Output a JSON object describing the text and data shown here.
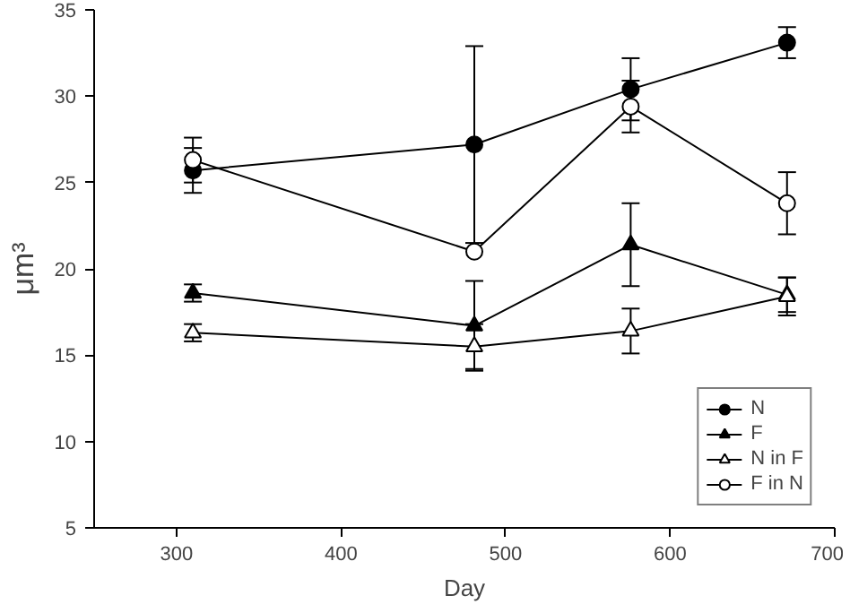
{
  "chart_data": {
    "type": "line",
    "xlabel": "Day",
    "ylabel": "μm³",
    "x": [
      310,
      481,
      576,
      671
    ],
    "series": [
      {
        "name": "N",
        "color": "#000000",
        "marker": "circle",
        "values": [
          25.7,
          27.2,
          30.4,
          33.1
        ],
        "errors": [
          1.3,
          5.7,
          1.8,
          0.9
        ]
      },
      {
        "name": "F",
        "color": "#000000",
        "marker": "triangle",
        "values": [
          18.6,
          16.7,
          21.4,
          18.5
        ],
        "errors": [
          0.5,
          2.6,
          2.4,
          1.0
        ]
      },
      {
        "name": "N in F",
        "color": "#ffffff",
        "marker": "triangle",
        "values": [
          16.3,
          15.5,
          16.4,
          18.4
        ],
        "errors": [
          0.5,
          1.3,
          1.3,
          1.1
        ]
      },
      {
        "name": "F in N",
        "color": "#ffffff",
        "marker": "circle",
        "values": [
          26.3,
          21.0,
          29.4,
          23.8
        ],
        "errors": [
          1.3,
          null,
          1.5,
          1.8
        ]
      }
    ],
    "xlim": [
      250,
      700
    ],
    "xticks": [
      300,
      400,
      500,
      600,
      700
    ],
    "ylim": [
      5,
      35
    ],
    "yticks": [
      5,
      10,
      15,
      20,
      25,
      30,
      35
    ],
    "grid": false,
    "legend": "bottom right",
    "line_style": "solid"
  }
}
